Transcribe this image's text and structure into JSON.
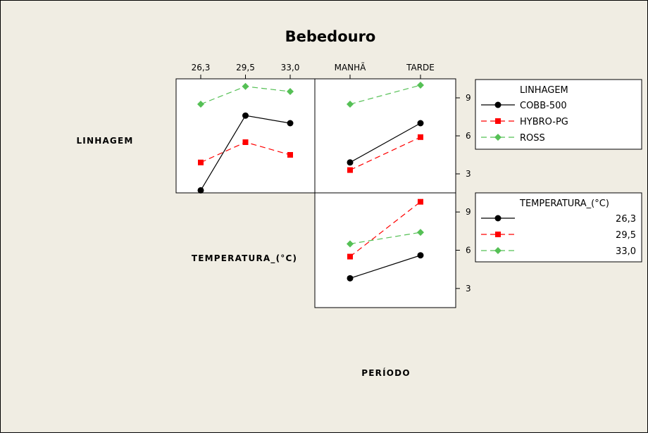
{
  "chart_data": {
    "type": "line",
    "title": "Bebedouro",
    "bottom_label": "PERÍODO",
    "row_labels": [
      "LINHAGEM",
      "TEMPERATURA_(°C)"
    ],
    "y_ticks": [
      "9",
      "6",
      "3"
    ],
    "ylim": [
      1.5,
      10.5
    ],
    "columns": {
      "temperatura": {
        "tick_labels": [
          "26,3",
          "29,5",
          "33,0"
        ]
      },
      "periodo": {
        "tick_labels": [
          "MANHÃ",
          "TARDE"
        ]
      }
    },
    "panels": [
      {
        "row": "LINHAGEM",
        "x_factor": "TEMPERATURA_(°C)",
        "categories": [
          "26,3",
          "29,5",
          "33,0"
        ],
        "series": [
          {
            "name": "COBB-500",
            "values": [
              1.7,
              7.6,
              7.0
            ]
          },
          {
            "name": "HYBRO-PG",
            "values": [
              3.9,
              5.5,
              4.5
            ]
          },
          {
            "name": "ROSS",
            "values": [
              8.5,
              9.9,
              9.5
            ]
          }
        ]
      },
      {
        "row": "LINHAGEM",
        "x_factor": "PERÍODO",
        "categories": [
          "MANHÃ",
          "TARDE"
        ],
        "series": [
          {
            "name": "COBB-500",
            "values": [
              3.9,
              7.0
            ]
          },
          {
            "name": "HYBRO-PG",
            "values": [
              3.3,
              5.9
            ]
          },
          {
            "name": "ROSS",
            "values": [
              8.5,
              10.0
            ]
          }
        ]
      },
      {
        "row": "TEMPERATURA_(°C)",
        "x_factor": "PERÍODO",
        "categories": [
          "MANHÃ",
          "TARDE"
        ],
        "series": [
          {
            "name": "26,3",
            "values": [
              3.8,
              5.6
            ]
          },
          {
            "name": "29,5",
            "values": [
              5.5,
              9.8
            ]
          },
          {
            "name": "33,0",
            "values": [
              6.5,
              7.4
            ]
          }
        ]
      }
    ],
    "legends": [
      {
        "title": "LINHAGEM",
        "entries": [
          "COBB-500",
          "HYBRO-PG",
          "ROSS"
        ]
      },
      {
        "title": "TEMPERATURA_(°C)",
        "entries": [
          "26,3",
          "29,5",
          "33,0"
        ]
      }
    ],
    "series_styles": [
      {
        "color": "#000000",
        "marker": "circle",
        "dash": "solid"
      },
      {
        "color": "#ff0000",
        "marker": "square",
        "dash": "dashed"
      },
      {
        "color": "#55c055",
        "marker": "diamond",
        "dash": "dashed"
      }
    ]
  }
}
